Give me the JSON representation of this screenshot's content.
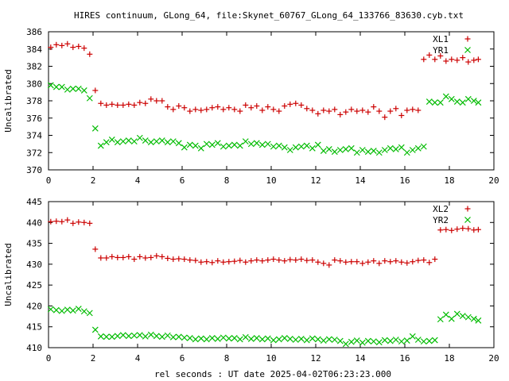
{
  "title": "HIRES continuum, GLong_64, file:Skynet_60767_GLong_64_133766_83630.cyb.txt",
  "chart_data": [
    {
      "type": "scatter",
      "title": "HIRES continuum, GLong_64, file:Skynet_60767_GLong_64_133766_83630.cyb.txt",
      "xlabel": "",
      "ylabel": "Uncalibrated",
      "xlim": [
        0,
        20
      ],
      "ylim": [
        370,
        386
      ],
      "xticks": [
        0,
        2,
        4,
        6,
        8,
        10,
        12,
        14,
        16,
        18,
        20
      ],
      "yticks": [
        370,
        372,
        374,
        376,
        378,
        380,
        382,
        384,
        386
      ],
      "grid": false,
      "legend": "top-right",
      "series": [
        {
          "name": "XL1",
          "color": "#cc0000",
          "marker": "plus",
          "x": [
            0.1,
            0.35,
            0.6,
            0.85,
            1.1,
            1.35,
            1.6,
            1.85,
            2.1,
            2.35,
            2.6,
            2.85,
            3.1,
            3.35,
            3.6,
            3.85,
            4.1,
            4.35,
            4.6,
            4.85,
            5.1,
            5.35,
            5.6,
            5.85,
            6.1,
            6.35,
            6.6,
            6.85,
            7.1,
            7.35,
            7.6,
            7.85,
            8.1,
            8.35,
            8.6,
            8.85,
            9.1,
            9.35,
            9.6,
            9.85,
            10.1,
            10.35,
            10.6,
            10.85,
            11.1,
            11.35,
            11.6,
            11.85,
            12.1,
            12.35,
            12.6,
            12.85,
            13.1,
            13.35,
            13.6,
            13.85,
            14.1,
            14.35,
            14.6,
            14.85,
            15.1,
            15.35,
            15.6,
            15.85,
            16.1,
            16.35,
            16.6,
            16.85,
            17.1,
            17.35,
            17.6,
            17.85,
            18.1,
            18.35,
            18.6,
            18.85,
            19.1,
            19.3
          ],
          "y": [
            384.2,
            384.5,
            384.4,
            384.6,
            384.2,
            384.3,
            384.1,
            383.4,
            379.2,
            377.7,
            377.5,
            377.6,
            377.5,
            377.5,
            377.6,
            377.5,
            377.8,
            377.7,
            378.2,
            378.0,
            378.0,
            377.3,
            377.0,
            377.4,
            377.2,
            376.8,
            377.0,
            376.9,
            377.0,
            377.2,
            377.3,
            377.0,
            377.2,
            377.0,
            376.8,
            377.5,
            377.2,
            377.4,
            376.9,
            377.3,
            377.0,
            376.8,
            377.4,
            377.6,
            377.7,
            377.5,
            377.1,
            376.9,
            376.5,
            376.9,
            376.8,
            377.0,
            376.4,
            376.7,
            377.0,
            376.8,
            376.9,
            376.7,
            377.3,
            376.8,
            376.1,
            376.8,
            377.1,
            376.3,
            376.9,
            377.0,
            376.9,
            382.8,
            383.3,
            382.8,
            383.2,
            382.6,
            382.8,
            382.7,
            383.0,
            382.5,
            382.7,
            382.8
          ]
        },
        {
          "name": "YR1",
          "color": "#00bb00",
          "marker": "cross",
          "x": [
            0.1,
            0.35,
            0.6,
            0.85,
            1.1,
            1.35,
            1.6,
            1.85,
            2.1,
            2.35,
            2.6,
            2.85,
            3.1,
            3.35,
            3.6,
            3.85,
            4.1,
            4.35,
            4.6,
            4.85,
            5.1,
            5.35,
            5.6,
            5.85,
            6.1,
            6.35,
            6.6,
            6.85,
            7.1,
            7.35,
            7.6,
            7.85,
            8.1,
            8.35,
            8.6,
            8.85,
            9.1,
            9.35,
            9.6,
            9.85,
            10.1,
            10.35,
            10.6,
            10.85,
            11.1,
            11.35,
            11.6,
            11.85,
            12.1,
            12.35,
            12.6,
            12.85,
            13.1,
            13.35,
            13.6,
            13.85,
            14.1,
            14.35,
            14.6,
            14.85,
            15.1,
            15.35,
            15.6,
            15.85,
            16.1,
            16.35,
            16.6,
            16.85,
            17.1,
            17.35,
            17.6,
            17.85,
            18.1,
            18.35,
            18.6,
            18.85,
            19.1,
            19.3
          ],
          "y": [
            379.8,
            379.6,
            379.6,
            379.3,
            379.4,
            379.4,
            379.2,
            378.3,
            374.8,
            372.8,
            373.2,
            373.5,
            373.2,
            373.3,
            373.4,
            373.3,
            373.7,
            373.4,
            373.2,
            373.3,
            373.4,
            373.2,
            373.3,
            373.1,
            372.6,
            372.9,
            372.8,
            372.5,
            373.0,
            372.9,
            373.1,
            372.7,
            372.8,
            372.9,
            372.8,
            373.3,
            373.0,
            373.1,
            372.9,
            373.0,
            372.7,
            372.8,
            372.6,
            372.3,
            372.6,
            372.7,
            372.8,
            372.5,
            372.9,
            372.2,
            372.4,
            372.1,
            372.3,
            372.4,
            372.5,
            372.0,
            372.3,
            372.1,
            372.2,
            372.0,
            372.3,
            372.5,
            372.4,
            372.6,
            372.0,
            372.3,
            372.5,
            372.7,
            377.9,
            377.8,
            377.8,
            378.5,
            378.2,
            377.9,
            377.8,
            378.2,
            378.0,
            377.8
          ]
        }
      ]
    },
    {
      "type": "scatter",
      "title": "",
      "xlabel": "rel seconds : UT date 2025-04-02T06:23:23.000",
      "ylabel": "Uncalibrated",
      "xlim": [
        0,
        20
      ],
      "ylim": [
        410,
        445
      ],
      "xticks": [
        0,
        2,
        4,
        6,
        8,
        10,
        12,
        14,
        16,
        18,
        20
      ],
      "yticks": [
        410,
        415,
        420,
        425,
        430,
        435,
        440,
        445
      ],
      "grid": false,
      "legend": "top-right",
      "series": [
        {
          "name": "XL2",
          "color": "#cc0000",
          "marker": "plus",
          "x": [
            0.1,
            0.35,
            0.6,
            0.85,
            1.1,
            1.35,
            1.6,
            1.85,
            2.1,
            2.35,
            2.6,
            2.85,
            3.1,
            3.35,
            3.6,
            3.85,
            4.1,
            4.35,
            4.6,
            4.85,
            5.1,
            5.35,
            5.6,
            5.85,
            6.1,
            6.35,
            6.6,
            6.85,
            7.1,
            7.35,
            7.6,
            7.85,
            8.1,
            8.35,
            8.6,
            8.85,
            9.1,
            9.35,
            9.6,
            9.85,
            10.1,
            10.35,
            10.6,
            10.85,
            11.1,
            11.35,
            11.6,
            11.85,
            12.1,
            12.35,
            12.6,
            12.85,
            13.1,
            13.35,
            13.6,
            13.85,
            14.1,
            14.35,
            14.6,
            14.85,
            15.1,
            15.35,
            15.6,
            15.85,
            16.1,
            16.35,
            16.6,
            16.85,
            17.1,
            17.35,
            17.6,
            17.85,
            18.1,
            18.35,
            18.6,
            18.85,
            19.1,
            19.3
          ],
          "y": [
            440.2,
            440.3,
            440.2,
            440.6,
            439.8,
            440.1,
            440.0,
            439.8,
            433.6,
            431.5,
            431.5,
            431.8,
            431.6,
            431.6,
            431.8,
            431.2,
            431.8,
            431.5,
            431.6,
            432.0,
            431.8,
            431.4,
            431.2,
            431.3,
            431.2,
            431.0,
            430.9,
            430.5,
            430.6,
            430.4,
            430.8,
            430.5,
            430.6,
            430.7,
            430.9,
            430.5,
            430.8,
            431.0,
            430.8,
            431.0,
            431.2,
            431.0,
            430.8,
            431.1,
            431.0,
            431.2,
            430.9,
            431.0,
            430.5,
            430.2,
            429.8,
            431.0,
            430.8,
            430.5,
            430.6,
            430.6,
            430.2,
            430.5,
            430.8,
            430.2,
            430.8,
            430.6,
            430.8,
            430.5,
            430.3,
            430.6,
            430.9,
            431.0,
            430.4,
            431.2,
            438.2,
            438.3,
            438.1,
            438.4,
            438.6,
            438.5,
            438.2,
            438.3
          ]
        },
        {
          "name": "YR2",
          "color": "#00bb00",
          "marker": "cross",
          "x": [
            0.1,
            0.35,
            0.6,
            0.85,
            1.1,
            1.35,
            1.6,
            1.85,
            2.1,
            2.35,
            2.6,
            2.85,
            3.1,
            3.35,
            3.6,
            3.85,
            4.1,
            4.35,
            4.6,
            4.85,
            5.1,
            5.35,
            5.6,
            5.85,
            6.1,
            6.35,
            6.6,
            6.85,
            7.1,
            7.35,
            7.6,
            7.85,
            8.1,
            8.35,
            8.6,
            8.85,
            9.1,
            9.35,
            9.6,
            9.85,
            10.1,
            10.35,
            10.6,
            10.85,
            11.1,
            11.35,
            11.6,
            11.85,
            12.1,
            12.35,
            12.6,
            12.85,
            13.1,
            13.35,
            13.6,
            13.85,
            14.1,
            14.35,
            14.6,
            14.85,
            15.1,
            15.35,
            15.6,
            15.85,
            16.1,
            16.35,
            16.6,
            16.85,
            17.1,
            17.35,
            17.6,
            17.85,
            18.1,
            18.35,
            18.6,
            18.85,
            19.1,
            19.3
          ],
          "y": [
            419.2,
            419.0,
            418.8,
            419.1,
            418.9,
            419.3,
            418.7,
            418.3,
            414.3,
            412.7,
            412.6,
            412.6,
            412.8,
            413.0,
            412.8,
            412.9,
            413.0,
            412.7,
            413.1,
            412.8,
            412.6,
            412.9,
            412.5,
            412.6,
            412.4,
            412.3,
            412.0,
            412.2,
            412.0,
            412.3,
            412.1,
            412.4,
            412.2,
            412.3,
            412.0,
            412.5,
            412.1,
            412.3,
            412.0,
            412.2,
            411.8,
            412.0,
            412.3,
            412.1,
            411.9,
            412.1,
            411.8,
            412.2,
            412.0,
            411.7,
            412.0,
            411.9,
            411.6,
            410.9,
            411.4,
            411.7,
            411.2,
            411.6,
            411.5,
            411.3,
            411.8,
            411.6,
            411.9,
            411.5,
            411.7,
            412.7,
            411.9,
            411.5,
            411.6,
            411.8,
            416.8,
            417.9,
            416.9,
            418.1,
            417.6,
            417.3,
            416.9,
            416.5
          ]
        }
      ]
    }
  ]
}
